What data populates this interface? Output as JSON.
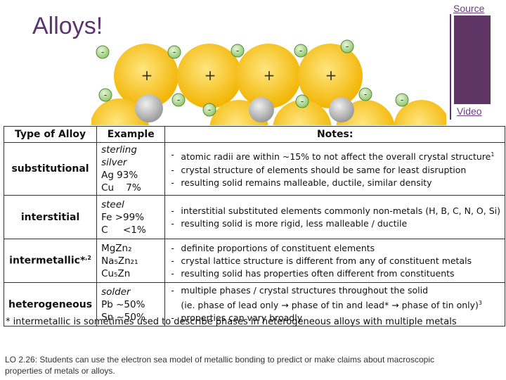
{
  "slide": {
    "title": "Alloys!",
    "source_link": "Source",
    "video_link": "Video",
    "accent_color": "#5f3566"
  },
  "illustration": {
    "positive_symbol": "+",
    "negative_symbol": "-"
  },
  "table": {
    "headers": [
      "Type of Alloy",
      "Example",
      "Notes:"
    ],
    "rows": [
      {
        "type": "substitutional",
        "example_name": "sterling silver",
        "example_lines": [
          "Ag 93%",
          "Cu    7%"
        ],
        "notes": [
          "atomic radii are within ~15% to not affect the overall crystal structure",
          "crystal structure of elements should be same for least disruption",
          "resulting solid remains malleable, ductile, similar density"
        ],
        "note_sup": "1"
      },
      {
        "type": "interstitial",
        "example_name": "steel",
        "example_lines": [
          "Fe >99%",
          "C     <1%"
        ],
        "notes": [
          "interstitial substituted elements commonly non-metals (H, B, C, N, O, Si)",
          "resulting solid is more rigid, less malleable / ductile"
        ]
      },
      {
        "type": "intermetallic*",
        "type_sup": ",2",
        "example_name": "",
        "example_lines": [
          "MgZn₂",
          "Na₅Zn₂₁",
          "Cu₅Zn"
        ],
        "notes": [
          "definite proportions of constituent elements",
          "crystal lattice structure is different from any of constituent metals",
          "resulting solid has properties often different from constituents"
        ]
      },
      {
        "type": "heterogeneous",
        "example_name": "solder",
        "example_lines": [
          "Pb ~50%",
          "Sn ~50%"
        ],
        "notes": [
          "multiple phases / crystal structures throughout the solid",
          "(ie. phase of lead only → phase of tin and lead* → phase of tin only)",
          "properties can vary broadly"
        ],
        "note_sup": "3"
      }
    ]
  },
  "footnote": "* intermetallic is sometimes used to describe phases in heterogeneous alloys with multiple metals",
  "learning_objective": "LO 2.26: Students can use the electron sea model of metallic bonding to predict or make claims about macroscopic properties of metals or alloys."
}
